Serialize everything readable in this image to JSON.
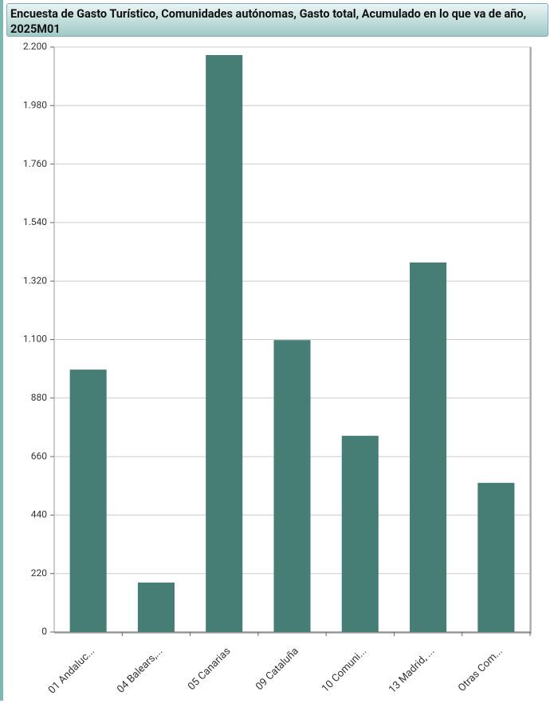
{
  "chart_data": {
    "type": "bar",
    "title": "Encuesta de Gasto Turístico, Comunidades autónomas, Gasto total, Acumulado en lo que va de año, 2025M01",
    "categories": [
      "01 Andaluc...",
      "04 Balears,...",
      "05 Canarias",
      "09 Cataluña",
      "10 Comuni...",
      "13 Madrid, ...",
      "Otras Com..."
    ],
    "values": [
      987,
      186,
      2170,
      1098,
      738,
      1390,
      561
    ],
    "color": "#467e76",
    "ylim": [
      0,
      2200
    ],
    "yticks": [
      0,
      220,
      440,
      660,
      880,
      {
        "value": 1100,
        "label": "1.100"
      },
      {
        "value": 1320,
        "label": "1.320"
      },
      {
        "value": 1540,
        "label": "1.540"
      },
      {
        "value": 1760,
        "label": "1.760"
      },
      {
        "value": 1980,
        "label": "1.980"
      },
      {
        "value": 2200,
        "label": "2.200"
      }
    ],
    "grid": true
  }
}
